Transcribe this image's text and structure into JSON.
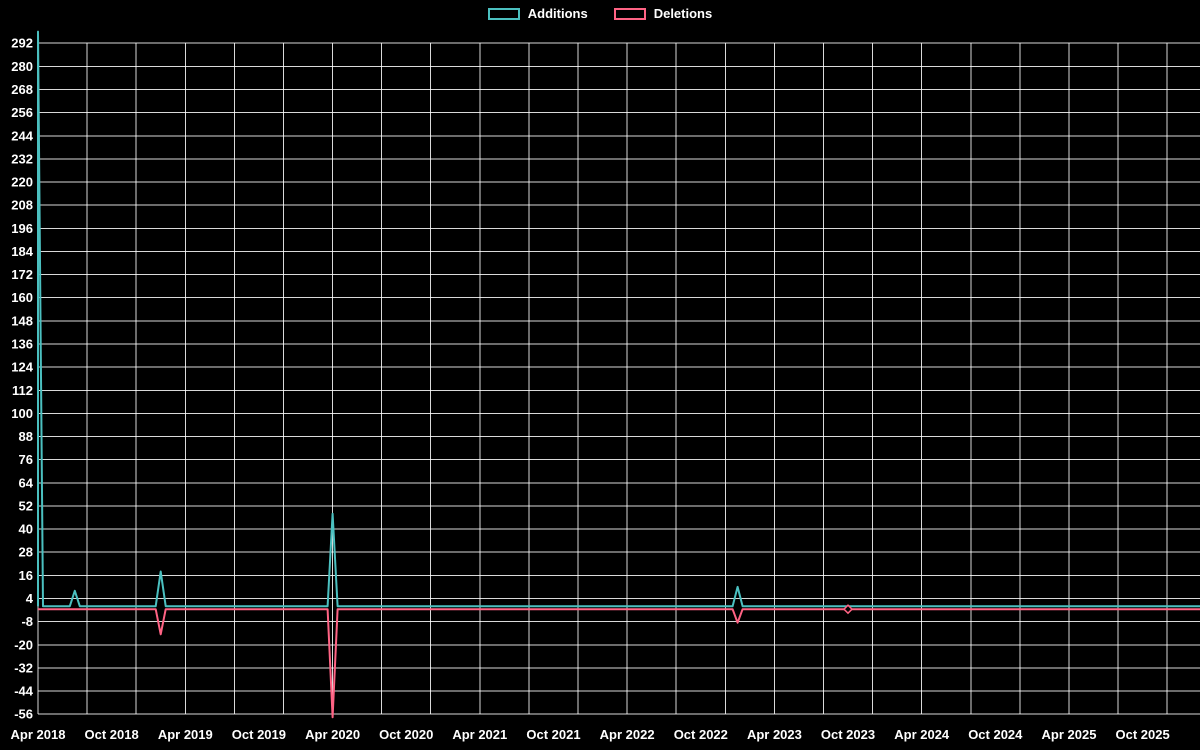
{
  "chart_data": {
    "type": "line",
    "title": "",
    "background": "#000000",
    "text_color": "#ffffff",
    "gridline_color": "rgba(255,255,255,0.85)",
    "grid": true,
    "legend_position": "top",
    "x_axis": {
      "ticks": [
        "Apr 2018",
        "Oct 2018",
        "Apr 2019",
        "Oct 2019",
        "Apr 2020",
        "Oct 2020",
        "Apr 2021",
        "Oct 2021",
        "Apr 2022",
        "Oct 2022",
        "Apr 2023",
        "Oct 2023",
        "Apr 2024",
        "Oct 2024",
        "Apr 2025",
        "Oct 2025"
      ],
      "start": "2018-04",
      "months_per_tick": 6,
      "minor_gridline_months": 4
    },
    "y_axis": {
      "min": -56,
      "max": 298,
      "tick_step": 12,
      "ticks": [
        292,
        280,
        268,
        256,
        244,
        232,
        220,
        208,
        196,
        184,
        172,
        160,
        148,
        136,
        124,
        112,
        100,
        88,
        76,
        64,
        52,
        40,
        28,
        16,
        4,
        -8,
        -20,
        -32,
        -44,
        -56
      ]
    },
    "series": [
      {
        "name": "Additions",
        "color": "#4bc0c0",
        "baseline": 0,
        "points": [
          {
            "x": "2018-04",
            "y": 298
          },
          {
            "x": "2018-07",
            "y": 8
          },
          {
            "x": "2019-02",
            "y": 18
          },
          {
            "x": "2020-04",
            "y": 48
          },
          {
            "x": "2023-01",
            "y": 10
          }
        ]
      },
      {
        "name": "Deletions",
        "color": "#ff6384",
        "baseline": 0,
        "points": [
          {
            "x": "2019-02",
            "y": -13
          },
          {
            "x": "2020-04",
            "y": -56
          },
          {
            "x": "2023-01",
            "y": -7
          }
        ]
      }
    ],
    "markers": [
      {
        "series": "Deletions",
        "x": "2023-10",
        "y": 0,
        "shape": "diamond"
      }
    ]
  }
}
